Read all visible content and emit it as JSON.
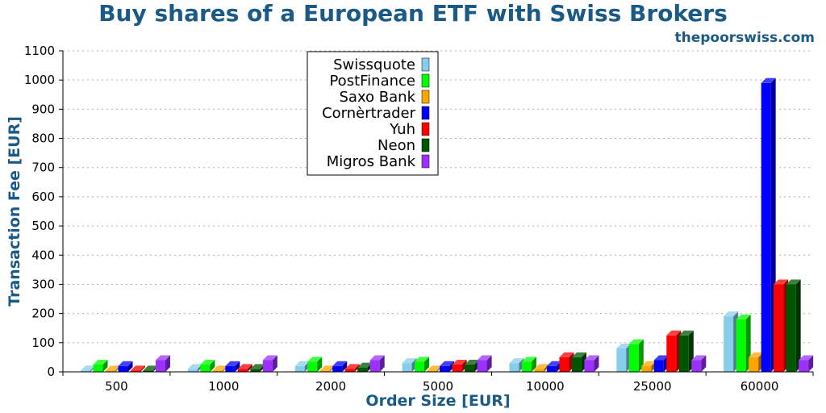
{
  "title": "Buy shares of a European ETF with Swiss Brokers",
  "site": "thepoorswiss.com",
  "chart_data": {
    "type": "bar",
    "title": "Buy shares of a European ETF with Swiss Brokers",
    "xlabel": "Order Size [EUR]",
    "ylabel": "Transaction Fee [EUR]",
    "ylim": [
      0,
      1100
    ],
    "yticks": [
      0,
      100,
      200,
      300,
      400,
      500,
      600,
      700,
      800,
      900,
      1000,
      1100
    ],
    "grid": true,
    "legend_position": "top-center",
    "categories": [
      "500",
      "1000",
      "2000",
      "5000",
      "10000",
      "25000",
      "60000"
    ],
    "series": [
      {
        "name": "Swissquote",
        "color": "#87ceeb",
        "values": [
          5,
          10,
          20,
          30,
          30,
          80,
          190
        ]
      },
      {
        "name": "PostFinance",
        "color": "#00ff00",
        "values": [
          25,
          25,
          35,
          35,
          35,
          95,
          180
        ]
      },
      {
        "name": "Saxo Bank",
        "color": "#ffa500",
        "values": [
          5,
          5,
          5,
          5,
          10,
          20,
          50
        ]
      },
      {
        "name": "Cornèrtrader",
        "color": "#0000ff",
        "values": [
          20,
          20,
          20,
          20,
          20,
          40,
          990
        ]
      },
      {
        "name": "Yuh",
        "color": "#ff0000",
        "values": [
          5,
          10,
          10,
          25,
          50,
          125,
          300
        ]
      },
      {
        "name": "Neon",
        "color": "#005500",
        "values": [
          5,
          10,
          15,
          25,
          50,
          125,
          300
        ]
      },
      {
        "name": "Migros Bank",
        "color": "#9b30ff",
        "values": [
          40,
          40,
          40,
          40,
          40,
          40,
          40
        ]
      }
    ]
  }
}
